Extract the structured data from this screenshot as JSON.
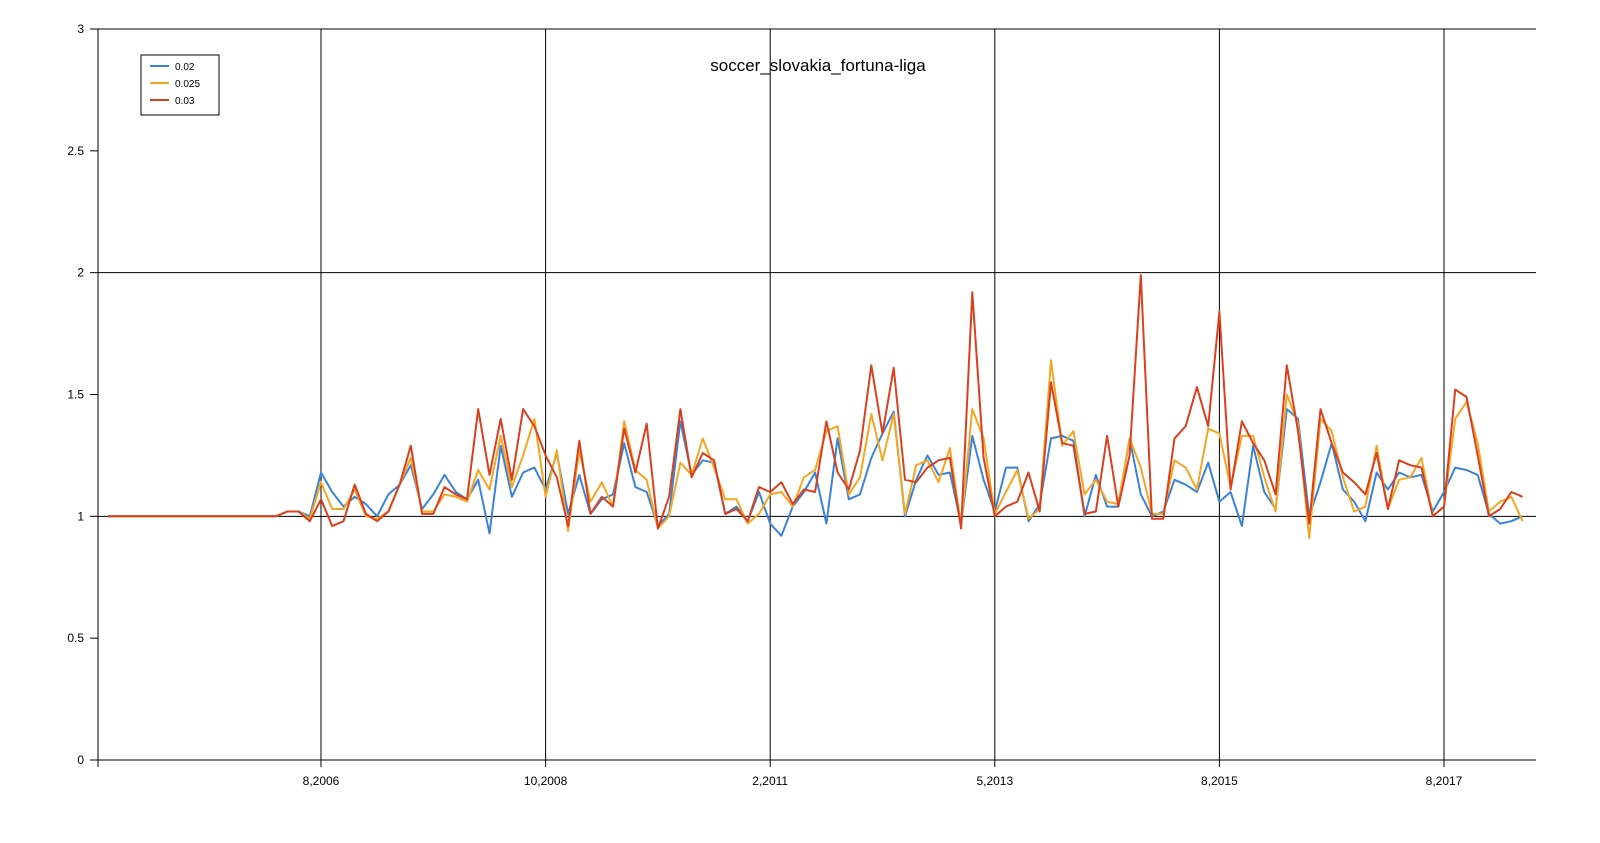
{
  "chart_data": {
    "type": "line",
    "title": "soccer_slovakia_fortuna-liga",
    "xlabel": "",
    "ylabel": "",
    "ylim": [
      0,
      3
    ],
    "xlim": [
      -17,
      112
    ],
    "y_ticks": [
      {
        "v": 0,
        "label": "0"
      },
      {
        "v": 0.5,
        "label": "0.5"
      },
      {
        "v": 1,
        "label": "1"
      },
      {
        "v": 1.5,
        "label": "1.5"
      },
      {
        "v": 2,
        "label": "2"
      },
      {
        "v": 2.5,
        "label": "2.5"
      },
      {
        "v": 3,
        "label": "3"
      }
    ],
    "x_ticks": [
      {
        "v": 0,
        "label": "8,2006"
      },
      {
        "v": 20,
        "label": "10,2008"
      },
      {
        "v": 40,
        "label": "2,2011"
      },
      {
        "v": 60,
        "label": "5,2013"
      },
      {
        "v": 80,
        "label": "8,2015"
      },
      {
        "v": 100,
        "label": "8,2017"
      }
    ],
    "grid": "major only: y at 1, 2, 3; x at labeled ticks",
    "legend_position": "top-left",
    "series": [
      {
        "name": "0.02",
        "color": "#3b83d8",
        "x": [
          -19,
          -4,
          -3,
          -2,
          -1,
          0,
          1,
          2,
          3,
          4,
          5,
          6,
          7,
          8,
          9,
          10,
          11,
          12,
          13,
          14,
          15,
          16,
          17,
          18,
          19,
          20,
          21,
          22,
          23,
          24,
          25,
          26,
          27,
          28,
          29,
          30,
          31,
          32,
          33,
          34,
          35,
          36,
          37,
          38,
          39,
          40,
          41,
          42,
          43,
          44,
          45,
          46,
          47,
          48,
          49,
          50,
          51,
          52,
          53,
          54,
          55,
          56,
          57,
          58,
          59,
          60,
          61,
          62,
          63,
          64,
          65,
          66,
          67,
          68,
          69,
          70,
          71,
          72,
          73,
          74,
          75,
          76,
          77,
          78,
          79,
          80,
          81,
          82,
          83,
          84,
          85,
          86,
          87,
          88,
          89,
          90,
          91,
          92,
          93,
          94,
          95,
          96,
          97,
          98,
          99,
          100,
          101,
          102,
          103,
          104,
          105,
          106,
          107
        ],
        "y": [
          1,
          1,
          1.02,
          1.02,
          1,
          1.18,
          1.1,
          1.04,
          1.08,
          1.05,
          1,
          1.09,
          1.13,
          1.21,
          1.03,
          1.09,
          1.17,
          1.1,
          1.07,
          1.15,
          0.93,
          1.29,
          1.08,
          1.18,
          1.2,
          1.11,
          1.26,
          1.01,
          1.17,
          1.01,
          1.07,
          1.09,
          1.3,
          1.12,
          1.1,
          0.96,
          1.01,
          1.39,
          1.17,
          1.23,
          1.22,
          1.01,
          1.04,
          0.98,
          1.1,
          0.97,
          0.92,
          1.04,
          1.1,
          1.18,
          0.97,
          1.32,
          1.07,
          1.09,
          1.24,
          1.34,
          1.43,
          1,
          1.15,
          1.25,
          1.17,
          1.18,
          0.97,
          1.33,
          1.15,
          1.02,
          1.2,
          1.2,
          0.98,
          1.05,
          1.32,
          1.33,
          1.31,
          1,
          1.17,
          1.04,
          1.04,
          1.32,
          1.09,
          1,
          1.02,
          1.15,
          1.13,
          1.1,
          1.22,
          1.06,
          1.1,
          0.96,
          1.29,
          1.1,
          1.03,
          1.44,
          1.4,
          1,
          1.14,
          1.3,
          1.11,
          1.06,
          0.98,
          1.18,
          1.11,
          1.18,
          1.16,
          1.17,
          1.02,
          1.1,
          1.2,
          1.19,
          1.17,
          1.01,
          0.97,
          0.98,
          1
        ]
      },
      {
        "name": "0.025",
        "color": "#f5a623",
        "x": [
          -19,
          -4,
          -3,
          -2,
          -1,
          0,
          1,
          2,
          3,
          4,
          5,
          6,
          7,
          8,
          9,
          10,
          11,
          12,
          13,
          14,
          15,
          16,
          17,
          18,
          19,
          20,
          21,
          22,
          23,
          24,
          25,
          26,
          27,
          28,
          29,
          30,
          31,
          32,
          33,
          34,
          35,
          36,
          37,
          38,
          39,
          40,
          41,
          42,
          43,
          44,
          45,
          46,
          47,
          48,
          49,
          50,
          51,
          52,
          53,
          54,
          55,
          56,
          57,
          58,
          59,
          60,
          61,
          62,
          63,
          64,
          65,
          66,
          67,
          68,
          69,
          70,
          71,
          72,
          73,
          74,
          75,
          76,
          77,
          78,
          79,
          80,
          81,
          82,
          83,
          84,
          85,
          86,
          87,
          88,
          89,
          90,
          91,
          92,
          93,
          94,
          95,
          96,
          97,
          98,
          99,
          100,
          101,
          102,
          103,
          104,
          105,
          106,
          107
        ],
        "y": [
          1,
          1,
          1.02,
          1.02,
          0.99,
          1.14,
          1.03,
          1.03,
          1.11,
          1,
          0.99,
          1.02,
          1.13,
          1.24,
          1.02,
          1.02,
          1.09,
          1.08,
          1.06,
          1.19,
          1.11,
          1.33,
          1.12,
          1.25,
          1.4,
          1.08,
          1.27,
          0.94,
          1.27,
          1.06,
          1.14,
          1.04,
          1.39,
          1.19,
          1.15,
          0.95,
          1,
          1.22,
          1.17,
          1.32,
          1.2,
          1.07,
          1.07,
          0.97,
          1.01,
          1.09,
          1.1,
          1.04,
          1.16,
          1.19,
          1.35,
          1.37,
          1.09,
          1.16,
          1.42,
          1.23,
          1.42,
          1.01,
          1.21,
          1.23,
          1.14,
          1.28,
          0.96,
          1.44,
          1.32,
          1.01,
          1.1,
          1.19,
          0.99,
          1.03,
          1.64,
          1.29,
          1.35,
          1.09,
          1.15,
          1.06,
          1.05,
          1.32,
          1.2,
          1.01,
          1.01,
          1.23,
          1.2,
          1.11,
          1.36,
          1.34,
          1.12,
          1.33,
          1.33,
          1.16,
          1.02,
          1.5,
          1.38,
          0.91,
          1.4,
          1.35,
          1.16,
          1.02,
          1.04,
          1.29,
          1.03,
          1.15,
          1.16,
          1.24,
          1,
          1.04,
          1.4,
          1.47,
          1.3,
          1.02,
          1.06,
          1.08,
          0.98
        ]
      },
      {
        "name": "0.03",
        "color": "#d9411e",
        "x": [
          -19,
          -4,
          -3,
          -2,
          -1,
          0,
          1,
          2,
          3,
          4,
          5,
          6,
          7,
          8,
          9,
          10,
          11,
          12,
          13,
          14,
          15,
          16,
          17,
          18,
          19,
          20,
          21,
          22,
          23,
          24,
          25,
          26,
          27,
          28,
          29,
          30,
          31,
          32,
          33,
          34,
          35,
          36,
          37,
          38,
          39,
          40,
          41,
          42,
          43,
          44,
          45,
          46,
          47,
          48,
          49,
          50,
          51,
          52,
          53,
          54,
          55,
          56,
          57,
          58,
          59,
          60,
          61,
          62,
          63,
          64,
          65,
          66,
          67,
          68,
          69,
          70,
          71,
          72,
          73,
          74,
          75,
          76,
          77,
          78,
          79,
          80,
          81,
          82,
          83,
          84,
          85,
          86,
          87,
          88,
          89,
          90,
          91,
          92,
          93,
          94,
          95,
          96,
          97,
          98,
          99,
          100,
          101,
          102,
          103,
          104,
          105,
          106,
          107
        ],
        "y": [
          1,
          1,
          1.02,
          1.02,
          0.98,
          1.07,
          0.96,
          0.98,
          1.13,
          1.01,
          0.98,
          1.02,
          1.13,
          1.29,
          1.01,
          1.01,
          1.12,
          1.09,
          1.07,
          1.44,
          1.17,
          1.4,
          1.15,
          1.44,
          1.37,
          1.25,
          1.16,
          0.96,
          1.31,
          1.01,
          1.08,
          1.04,
          1.36,
          1.18,
          1.38,
          0.95,
          1.08,
          1.44,
          1.16,
          1.26,
          1.23,
          1.01,
          1.03,
          0.98,
          1.12,
          1.1,
          1.14,
          1.05,
          1.11,
          1.1,
          1.39,
          1.18,
          1.11,
          1.27,
          1.62,
          1.34,
          1.61,
          1.15,
          1.14,
          1.2,
          1.23,
          1.24,
          0.95,
          1.92,
          1.24,
          1,
          1.04,
          1.06,
          1.18,
          1.02,
          1.55,
          1.3,
          1.29,
          1.01,
          1.02,
          1.33,
          1.04,
          1.25,
          1.99,
          0.99,
          0.99,
          1.32,
          1.37,
          1.53,
          1.37,
          1.84,
          1.11,
          1.39,
          1.3,
          1.23,
          1.09,
          1.62,
          1.35,
          0.97,
          1.44,
          1.3,
          1.18,
          1.14,
          1.09,
          1.26,
          1.03,
          1.23,
          1.21,
          1.2,
          1,
          1.04,
          1.52,
          1.49,
          1.25,
          1,
          1.03,
          1.1,
          1.08
        ]
      }
    ]
  }
}
